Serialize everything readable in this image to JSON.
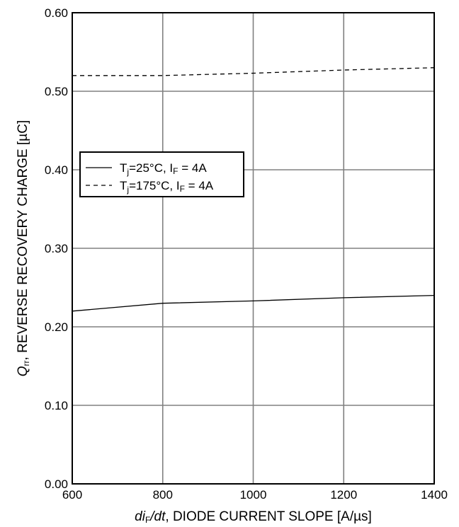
{
  "chart_data": {
    "type": "line",
    "title": "",
    "xlabel": {
      "prefix": "di",
      "sub": "F",
      "suffix": "/dt",
      "rest": ", DIODE CURRENT SLOPE [A/µs]"
    },
    "ylabel": {
      "prefix": "Q",
      "sub": "rr",
      "rest": ", REVERSE RECOVERY CHARGE [µC]"
    },
    "xlim": [
      600,
      1400
    ],
    "ylim": [
      0,
      0.6
    ],
    "xticks": [
      600,
      800,
      1000,
      1200,
      1400
    ],
    "xtick_labels": [
      "600",
      "800",
      "1000",
      "1200",
      "1400"
    ],
    "yticks": [
      0,
      0.1,
      0.2,
      0.3,
      0.4,
      0.5,
      0.6
    ],
    "ytick_labels": [
      "0.00",
      "0.10",
      "0.20",
      "0.30",
      "0.40",
      "0.50",
      "0.60"
    ],
    "grid": true,
    "legend_position": "left, upper-middle",
    "series": [
      {
        "legend": {
          "t": "T",
          "tsub": "j",
          "mid": "=25°C, I",
          "isub": "F",
          "end": " = 4A"
        },
        "style": "solid",
        "x": [
          600,
          800,
          1000,
          1200,
          1400
        ],
        "y": [
          0.22,
          0.23,
          0.233,
          0.237,
          0.24
        ]
      },
      {
        "legend": {
          "t": "T",
          "tsub": "j",
          "mid": "=175°C, I",
          "isub": "F",
          "end": " = 4A"
        },
        "style": "dashed",
        "x": [
          600,
          800,
          1000,
          1200,
          1400
        ],
        "y": [
          0.52,
          0.52,
          0.523,
          0.527,
          0.53
        ]
      }
    ]
  }
}
